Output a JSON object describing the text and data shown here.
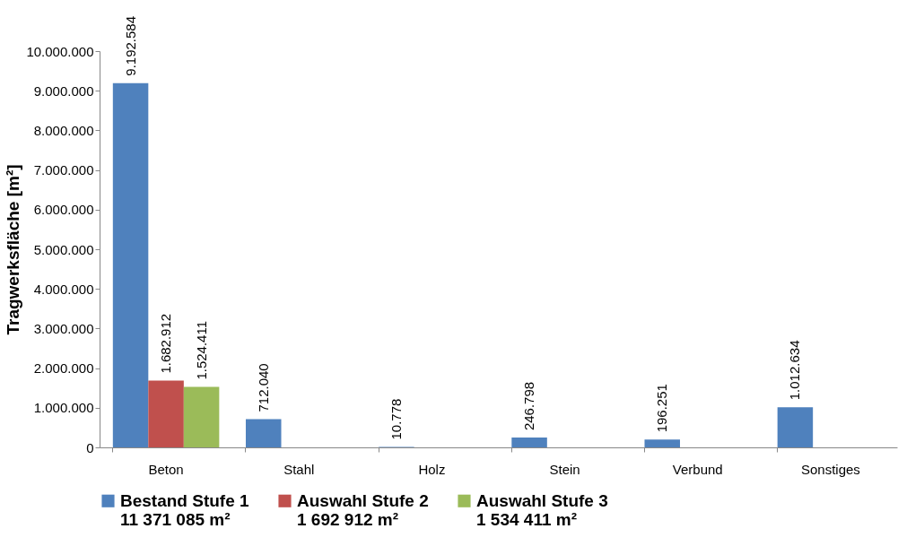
{
  "chart_data": {
    "type": "bar",
    "ylabel": "Tragwerksfläche [m²]",
    "categories": [
      "Beton",
      "Stahl",
      "Holz",
      "Stein",
      "Verbund",
      "Sonstiges"
    ],
    "series": [
      {
        "name": "Bestand Stufe 1\n11 371 085 m²",
        "color": "#4f81bd",
        "values": [
          9192584,
          712040,
          10778,
          246798,
          196251,
          1012634
        ],
        "value_labels": [
          "9.192.584",
          "712.040",
          "10.778",
          "246.798",
          "196.251",
          "1.012.634"
        ]
      },
      {
        "name": "Auswahl Stufe 2\n1 692 912 m²",
        "color": "#c0504d",
        "values": [
          1682912,
          null,
          null,
          null,
          null,
          null
        ],
        "value_labels": [
          "1.682.912",
          null,
          null,
          null,
          null,
          null
        ]
      },
      {
        "name": "Auswahl Stufe 3\n1 534 411 m²",
        "color": "#9bbb59",
        "values": [
          1524411,
          null,
          null,
          null,
          null,
          null
        ],
        "value_labels": [
          "1.524.411",
          null,
          null,
          null,
          null,
          null
        ]
      }
    ],
    "ylim": [
      0,
      10000000
    ],
    "yticks": [
      0,
      {
        "value": 1000000,
        "label": "1.000.000"
      },
      {
        "value": 2000000,
        "label": "2.000.000"
      },
      {
        "value": 3000000,
        "label": "3.000.000"
      },
      {
        "value": 4000000,
        "label": "4.000.000"
      },
      {
        "value": 5000000,
        "label": "5.000.000"
      },
      {
        "value": 6000000,
        "label": "6.000.000"
      },
      {
        "value": 7000000,
        "label": "7.000.000"
      },
      {
        "value": 8000000,
        "label": "8.000.000"
      },
      {
        "value": 9000000,
        "label": "9.000.000"
      },
      {
        "value": 10000000,
        "label": "10.000.000"
      }
    ],
    "grid": false,
    "legend": "bottom"
  }
}
